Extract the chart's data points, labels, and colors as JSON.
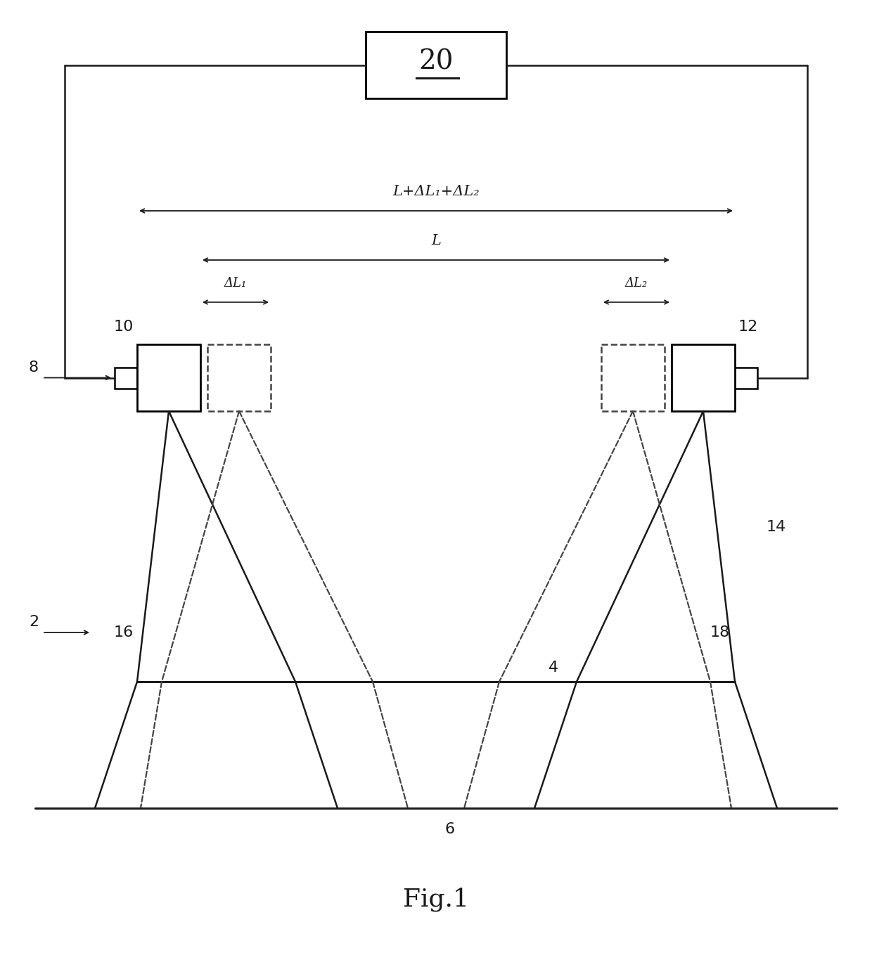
{
  "bg_color": "#ffffff",
  "line_color": "#1a1a1a",
  "dashed_color": "#444444",
  "fig_width": 12.4,
  "fig_height": 13.76,
  "fig_caption": "Fig.1",
  "arrow_label_L_total": "L+ΔL₁+ΔL₂",
  "arrow_label_L": "L",
  "arrow_label_dL1": "ΔL₁",
  "arrow_label_dL2": "ΔL₂",
  "label_20": "20",
  "label_10": "10",
  "label_12": "12",
  "label_8": "8",
  "label_2": "2",
  "label_14": "14",
  "label_16": "16",
  "label_4": "4",
  "label_18": "18",
  "label_6": "6"
}
